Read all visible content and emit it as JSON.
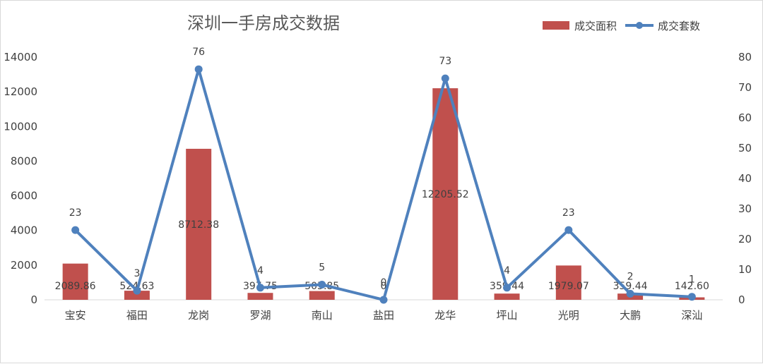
{
  "chart_data": {
    "type": "bar+line",
    "title": "深圳一手房成交数据",
    "categories": [
      "宝安",
      "福田",
      "龙岗",
      "罗湖",
      "南山",
      "盐田",
      "龙华",
      "坪山",
      "光明",
      "大鹏",
      "深汕"
    ],
    "series": [
      {
        "name": "成交面积",
        "type": "bar",
        "axis": "left",
        "color": "#c0504d",
        "values": [
          2089.86,
          524.63,
          8712.38,
          397.75,
          505.85,
          0,
          12205.52,
          359.44,
          1979.07,
          359.44,
          142.6
        ],
        "labels": [
          "2089.86",
          "524.63",
          "8712.38",
          "397.75",
          "505.85",
          "0",
          "12205.52",
          "359.44",
          "1979.07",
          "359.44",
          "142.60"
        ]
      },
      {
        "name": "成交套数",
        "type": "line",
        "axis": "right",
        "color": "#4f81bd",
        "values": [
          23,
          3,
          76,
          4,
          5,
          0,
          73,
          4,
          23,
          2,
          1
        ],
        "labels": [
          "23",
          "3",
          "76",
          "4",
          "5",
          "0",
          "73",
          "4",
          "23",
          "2",
          "1"
        ]
      }
    ],
    "y_left": {
      "min": 0,
      "max": 14000,
      "ticks": [
        "0",
        "2000",
        "4000",
        "6000",
        "8000",
        "10000",
        "12000",
        "14000"
      ]
    },
    "y_right": {
      "min": 0,
      "max": 80,
      "ticks": [
        "0",
        "10",
        "20",
        "30",
        "40",
        "50",
        "60",
        "70",
        "80"
      ]
    },
    "grid": false,
    "legend": "top-right"
  }
}
